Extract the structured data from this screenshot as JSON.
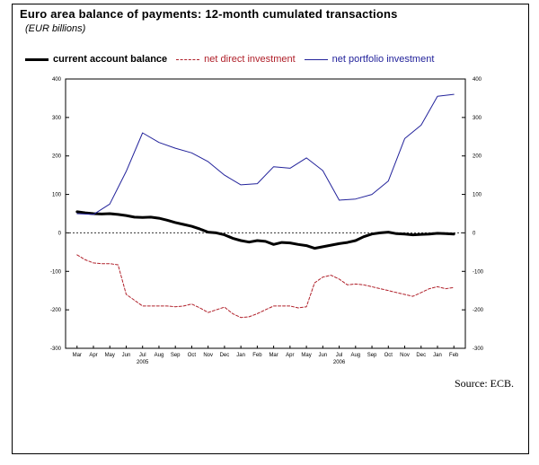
{
  "title": "Euro area balance of payments: 12-month cumulated transactions",
  "subtitle": "(EUR billions)",
  "source": "Source: ECB.",
  "legend": [
    {
      "label": "current account balance",
      "color": "#000000",
      "style": "solid-thick"
    },
    {
      "label": "net direct investment",
      "color": "#b0202a",
      "style": "dashed"
    },
    {
      "label": "net portfolio investment",
      "color": "#23239b",
      "style": "solid-thin"
    }
  ],
  "chart_data": {
    "type": "line",
    "categories": [
      "Mar",
      "Apr",
      "May",
      "Jun",
      "Jul",
      "Aug",
      "Sep",
      "Oct",
      "Nov",
      "Dec",
      "Jan",
      "Feb",
      "Mar",
      "Apr",
      "May",
      "Jun",
      "Jul",
      "Aug",
      "Sep",
      "Oct",
      "Nov",
      "Dec",
      "Jan",
      "Feb"
    ],
    "year_labels": [
      {
        "label": "2005",
        "category_index": 4
      },
      {
        "label": "2006",
        "category_index": 16
      }
    ],
    "ylim": [
      -300,
      400
    ],
    "yticks": [
      -300,
      -200,
      -100,
      0,
      100,
      200,
      300,
      400
    ],
    "ytick_labels": [
      "-300",
      "-200",
      "-100",
      "0",
      "100",
      "200",
      "300",
      "400"
    ],
    "zero_line": "dotted",
    "grid": false,
    "legend_position": "top",
    "series": [
      {
        "name": "current account balance",
        "color": "#000000",
        "x": [
          0,
          0.5,
          1,
          1.5,
          2,
          2.5,
          3,
          3.5,
          4,
          4.5,
          5,
          5.5,
          6,
          6.5,
          7,
          7.5,
          8,
          8.5,
          9,
          9.5,
          10,
          10.5,
          11,
          11.5,
          12,
          12.5,
          13,
          13.5,
          14,
          14.5,
          15,
          15.5,
          16,
          16.5,
          17,
          17.5,
          18,
          18.5,
          19,
          19.5,
          20,
          20.5,
          21,
          21.5,
          22,
          22.5,
          23
        ],
        "values": [
          55,
          52,
          50,
          49,
          50,
          48,
          45,
          41,
          40,
          41,
          38,
          33,
          27,
          22,
          17,
          10,
          2,
          0,
          -5,
          -14,
          -20,
          -24,
          -20,
          -22,
          -30,
          -25,
          -26,
          -30,
          -33,
          -40,
          -36,
          -32,
          -28,
          -25,
          -20,
          -10,
          -3,
          0,
          2,
          -2,
          -3,
          -5,
          -4,
          -3,
          -1,
          -2,
          -3
        ]
      },
      {
        "name": "net direct investment",
        "color": "#b0202a",
        "x": [
          0,
          0.5,
          1,
          1.5,
          2,
          2.5,
          3,
          3.5,
          4,
          4.5,
          5,
          5.5,
          6,
          6.5,
          7,
          7.5,
          8,
          8.5,
          9,
          9.5,
          10,
          10.5,
          11,
          11.5,
          12,
          12.5,
          13,
          13.5,
          14,
          14.5,
          15,
          15.5,
          16,
          16.5,
          17,
          17.5,
          18,
          18.5,
          19,
          19.5,
          20,
          20.5,
          21,
          21.5,
          22,
          22.5,
          23
        ],
        "values": [
          -57,
          -70,
          -78,
          -80,
          -80,
          -83,
          -160,
          -175,
          -190,
          -190,
          -190,
          -190,
          -192,
          -190,
          -185,
          -195,
          -207,
          -200,
          -193,
          -210,
          -220,
          -218,
          -210,
          -200,
          -190,
          -190,
          -190,
          -195,
          -192,
          -130,
          -115,
          -110,
          -120,
          -135,
          -133,
          -135,
          -140,
          -145,
          -150,
          -155,
          -160,
          -165,
          -155,
          -145,
          -140,
          -145,
          -142
        ]
      },
      {
        "name": "net portfolio investment",
        "color": "#23239b",
        "x": [
          0,
          1,
          2,
          3,
          4,
          5,
          6,
          7,
          8,
          9,
          10,
          11,
          12,
          13,
          14,
          15,
          16,
          17,
          18,
          19,
          20,
          21,
          22,
          23
        ],
        "values": [
          50,
          48,
          75,
          160,
          260,
          235,
          220,
          208,
          185,
          150,
          125,
          128,
          172,
          168,
          195,
          162,
          85,
          88,
          100,
          135,
          245,
          280,
          355,
          360
        ]
      }
    ]
  }
}
